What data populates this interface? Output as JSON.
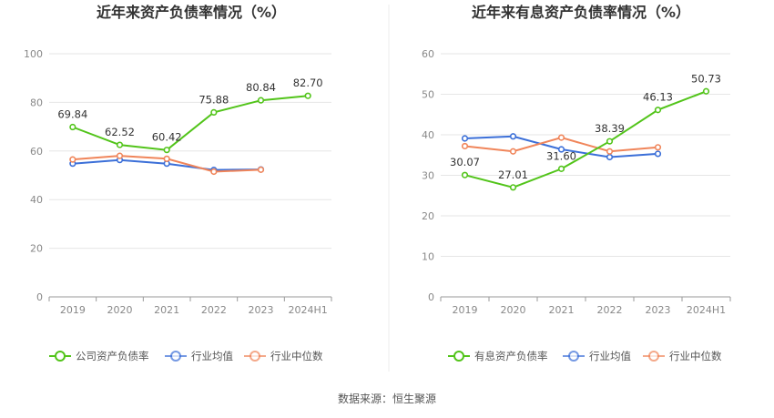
{
  "source_text": "数据来源：恒生聚源",
  "chart_data": [
    {
      "type": "line",
      "title": "近年来资产负债率情况（%）",
      "categories": [
        "2019",
        "2020",
        "2021",
        "2022",
        "2023",
        "2024H1"
      ],
      "ylim": [
        0,
        100
      ],
      "yticks": [
        0,
        20,
        40,
        60,
        80,
        100
      ],
      "grid": true,
      "legend_position": "bottom",
      "series": [
        {
          "name": "公司资产负债率",
          "color": "#52c41a",
          "values": [
            69.84,
            62.52,
            60.42,
            75.88,
            80.84,
            82.7
          ],
          "labels": [
            "69.84",
            "62.52",
            "60.42",
            "75.88",
            "80.84",
            "82.70"
          ]
        },
        {
          "name": "行业均值",
          "color": "#3b6fd8",
          "values": [
            54.8,
            56.3,
            54.8,
            52.2,
            52.4,
            null
          ]
        },
        {
          "name": "行业中位数",
          "color": "#f0855a",
          "values": [
            56.5,
            58.0,
            56.8,
            51.5,
            52.3,
            null
          ]
        }
      ]
    },
    {
      "type": "line",
      "title": "近年来有息资产负债率情况（%）",
      "categories": [
        "2019",
        "2020",
        "2021",
        "2022",
        "2023",
        "2024H1"
      ],
      "ylim": [
        0,
        60
      ],
      "yticks": [
        0,
        10,
        20,
        30,
        40,
        50,
        60
      ],
      "grid": true,
      "legend_position": "bottom",
      "series": [
        {
          "name": "有息资产负债率",
          "color": "#52c41a",
          "values": [
            30.07,
            27.01,
            31.6,
            38.39,
            46.13,
            50.73
          ],
          "labels": [
            "30.07",
            "27.01",
            "31.60",
            "38.39",
            "46.13",
            "50.73"
          ]
        },
        {
          "name": "行业均值",
          "color": "#3b6fd8",
          "values": [
            39.1,
            39.6,
            36.4,
            34.5,
            35.3,
            null
          ]
        },
        {
          "name": "行业中位数",
          "color": "#f0855a",
          "values": [
            37.2,
            35.9,
            39.3,
            35.9,
            36.9,
            null
          ]
        }
      ]
    }
  ]
}
